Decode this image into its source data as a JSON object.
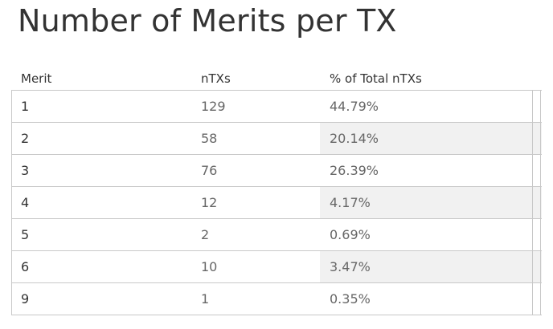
{
  "chart_data": {
    "type": "table",
    "title": "Number of Merits per TX",
    "columns": [
      "Merit",
      "nTXs",
      "% of Total nTXs"
    ],
    "rows": [
      {
        "merit": "1",
        "ntxs": "129",
        "pct": "44.79%"
      },
      {
        "merit": "2",
        "ntxs": "58",
        "pct": "20.14%"
      },
      {
        "merit": "3",
        "ntxs": "76",
        "pct": "26.39%"
      },
      {
        "merit": "4",
        "ntxs": "12",
        "pct": "4.17%"
      },
      {
        "merit": "5",
        "ntxs": "2",
        "pct": "0.69%"
      },
      {
        "merit": "6",
        "ntxs": "10",
        "pct": "3.47%"
      },
      {
        "merit": "9",
        "ntxs": "1",
        "pct": "0.35%"
      }
    ],
    "shaded_pct_rows": [
      false,
      true,
      false,
      true,
      false,
      true,
      false
    ]
  }
}
